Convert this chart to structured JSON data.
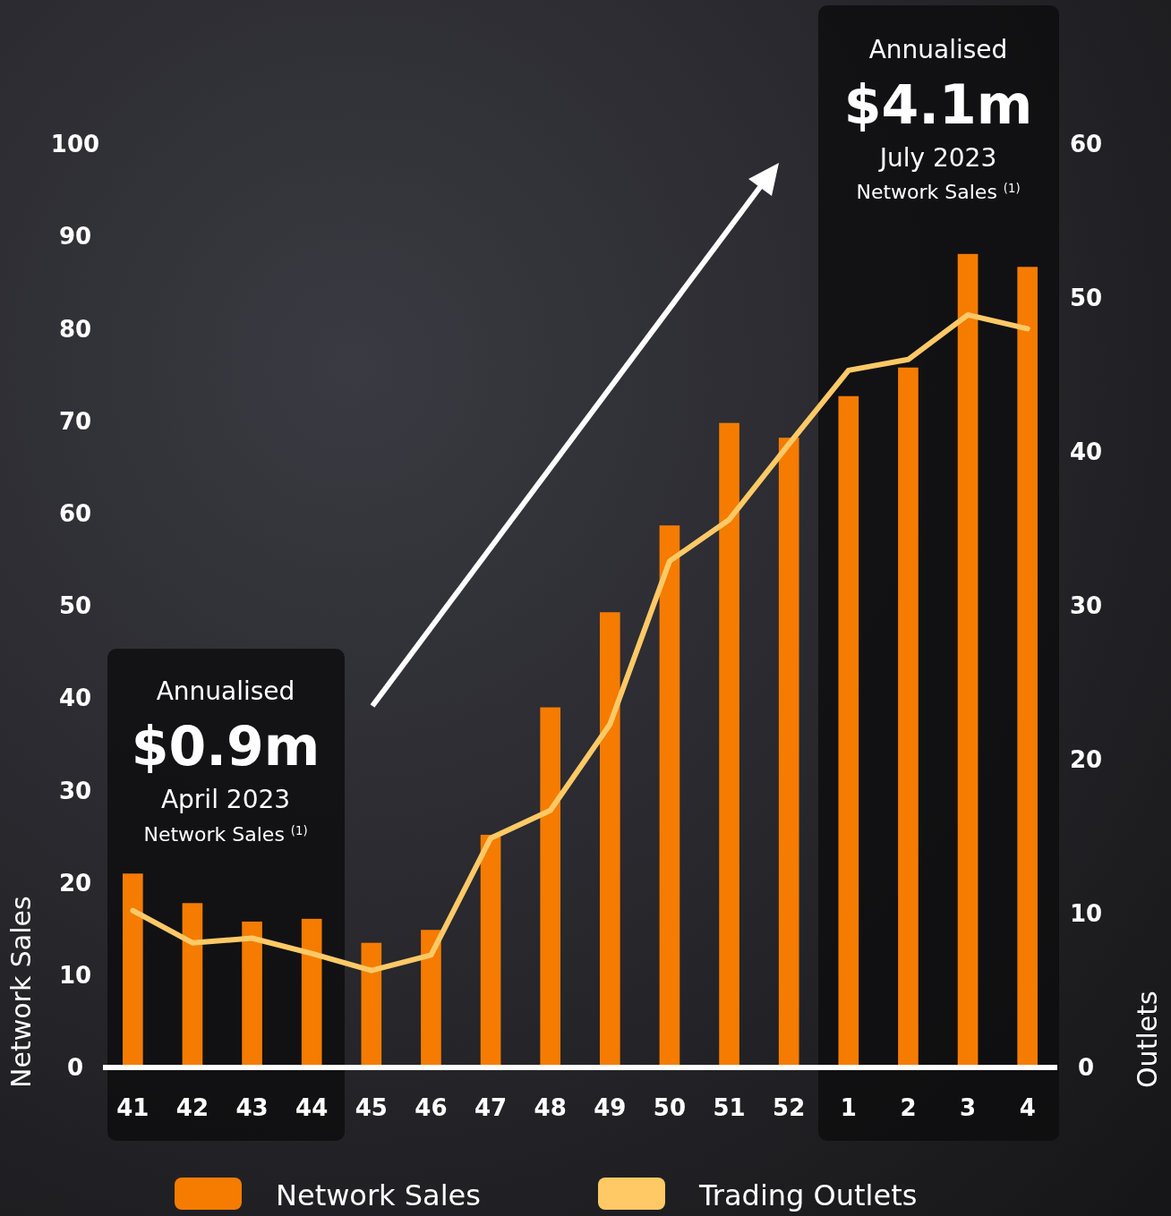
{
  "chart_data": {
    "type": "bar",
    "categories": [
      "41",
      "42",
      "43",
      "44",
      "45",
      "46",
      "47",
      "48",
      "49",
      "50",
      "51",
      "52",
      "1",
      "2",
      "3",
      "4"
    ],
    "series": [
      {
        "name": "Network Sales",
        "color": "#f57c00",
        "values": [
          21.0,
          17.8,
          15.8,
          16.1,
          13.5,
          14.9,
          25.2,
          39.0,
          49.3,
          58.7,
          69.8,
          68.2,
          72.7,
          75.8,
          88.1,
          86.7
        ]
      },
      {
        "name": "Trading Outlets",
        "type": "line",
        "axis": "y2",
        "color": "#ffc966",
        "values": [
          10.2,
          8.1,
          8.4,
          7.4,
          6.3,
          7.3,
          14.9,
          16.7,
          22.3,
          32.9,
          35.6,
          40.5,
          45.3,
          46.0,
          48.9,
          48.0
        ]
      }
    ],
    "ylabel": "Network Sales",
    "y2label": "Outlets",
    "ylim": [
      0,
      100
    ],
    "yticks": [
      0,
      10,
      20,
      30,
      40,
      50,
      60,
      70,
      80,
      90,
      100
    ],
    "y2lim": [
      0,
      60
    ],
    "y2ticks": [
      0,
      10,
      20,
      30,
      40,
      50,
      60
    ],
    "annotations": [
      "Annualised",
      "$0.9m",
      "April 2023",
      "Network Sales $^{(1)}$",
      "Annualised",
      "$4.1m",
      "July 2023",
      "Network Sales $^{(1)}$"
    ],
    "grid": false,
    "legend": "bottom",
    "marker": "none",
    "line_style": "solid"
  }
}
